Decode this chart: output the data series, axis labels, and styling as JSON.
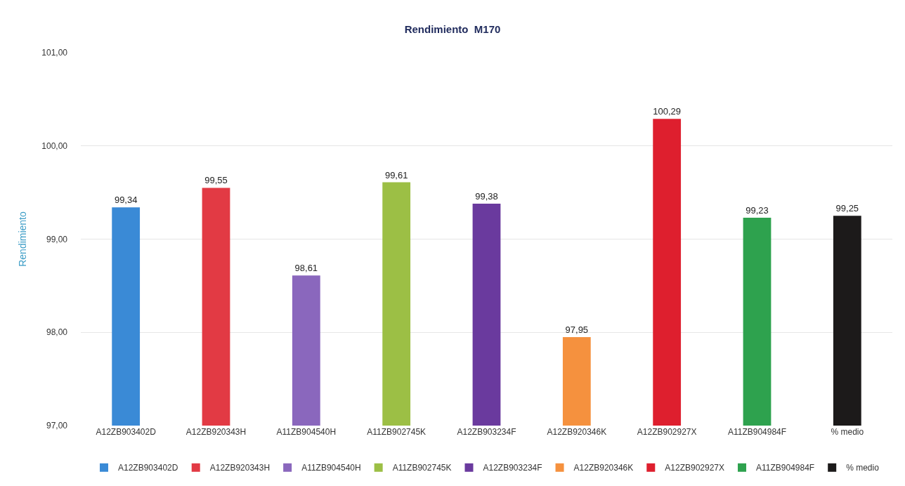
{
  "chart_data": {
    "type": "bar",
    "title": "Rendimiento  M170",
    "ylabel": "Rendimiento",
    "categories": [
      "A12ZB903402D",
      "A12ZB920343H",
      "A11ZB904540H",
      "A11ZB902745K",
      "A12ZB903234F",
      "A12ZB920346K",
      "A12ZB902927X",
      "A11ZB904984F",
      "% medio"
    ],
    "series": [
      {
        "name": "A12ZB903402D",
        "color": "#3a8ad6",
        "values": [
          99.34,
          null,
          null,
          null,
          null,
          null,
          null,
          null,
          null
        ],
        "value_labels": [
          "99,34",
          null,
          null,
          null,
          null,
          null,
          null,
          null,
          null
        ]
      },
      {
        "name": "A12ZB920343H",
        "color": "#e23a44",
        "values": [
          null,
          99.55,
          null,
          null,
          null,
          null,
          null,
          null,
          null
        ],
        "value_labels": [
          null,
          "99,55",
          null,
          null,
          null,
          null,
          null,
          null,
          null
        ]
      },
      {
        "name": "A11ZB904540H",
        "color": "#8a67bd",
        "values": [
          null,
          null,
          98.61,
          null,
          null,
          null,
          null,
          null,
          null
        ],
        "value_labels": [
          null,
          null,
          "98,61",
          null,
          null,
          null,
          null,
          null,
          null
        ]
      },
      {
        "name": "A11ZB902745K",
        "color": "#9cbf45",
        "values": [
          null,
          null,
          null,
          99.61,
          null,
          null,
          null,
          null,
          null
        ],
        "value_labels": [
          null,
          null,
          null,
          "99,61",
          null,
          null,
          null,
          null,
          null
        ]
      },
      {
        "name": "A12ZB903234F",
        "color": "#6a3a9e",
        "values": [
          null,
          null,
          null,
          null,
          99.38,
          null,
          null,
          null,
          null
        ],
        "value_labels": [
          null,
          null,
          null,
          null,
          "99,38",
          null,
          null,
          null,
          null
        ]
      },
      {
        "name": "A12ZB920346K",
        "color": "#f5913e",
        "values": [
          null,
          null,
          null,
          null,
          null,
          97.95,
          null,
          null,
          null
        ],
        "value_labels": [
          null,
          null,
          null,
          null,
          null,
          "97,95",
          null,
          null,
          null
        ]
      },
      {
        "name": "A12ZB902927X",
        "color": "#de1f2e",
        "values": [
          null,
          null,
          null,
          null,
          null,
          null,
          100.29,
          null,
          null
        ],
        "value_labels": [
          null,
          null,
          null,
          null,
          null,
          null,
          "100,29",
          null,
          null
        ]
      },
      {
        "name": "A11ZB904984F",
        "color": "#2ea24e",
        "values": [
          null,
          null,
          null,
          null,
          null,
          null,
          null,
          99.23,
          null
        ],
        "value_labels": [
          null,
          null,
          null,
          null,
          null,
          null,
          null,
          "99,23",
          null
        ]
      },
      {
        "name": "% medio",
        "color": "#1c1a1a",
        "values": [
          null,
          null,
          null,
          null,
          null,
          null,
          null,
          null,
          99.25
        ],
        "value_labels": [
          null,
          null,
          null,
          null,
          null,
          null,
          null,
          null,
          "99,25"
        ]
      }
    ],
    "ylim": [
      97,
      101
    ],
    "yticks": [
      {
        "value": 97,
        "label": "97,00"
      },
      {
        "value": 98,
        "label": "98,00"
      },
      {
        "value": 99,
        "label": "99,00"
      },
      {
        "value": 100,
        "label": "100,00"
      },
      {
        "value": 101,
        "label": "101,00"
      }
    ],
    "grid": "y",
    "legend": "bottom"
  }
}
